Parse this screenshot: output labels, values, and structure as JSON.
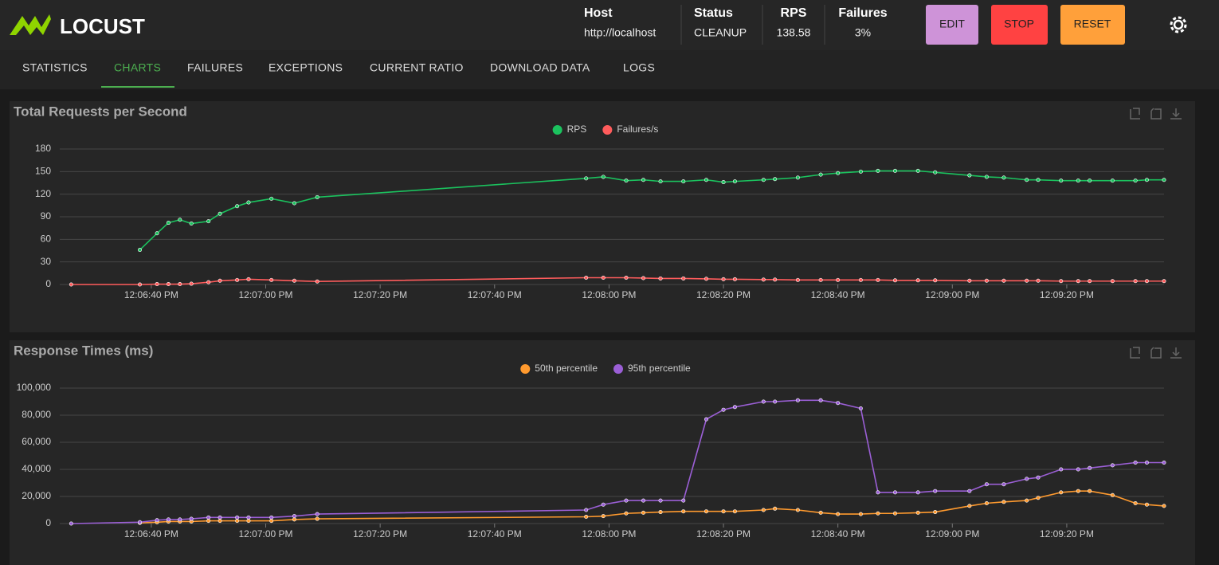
{
  "header": {
    "logo": "LOCUST",
    "stats": [
      {
        "label": "Host",
        "value": "http://localhost"
      },
      {
        "label": "Status",
        "value": "CLEANUP"
      },
      {
        "label": "RPS",
        "value": "138.58"
      },
      {
        "label": "Failures",
        "value": "3%"
      }
    ],
    "buttons": [
      "EDIT",
      "STOP",
      "RESET"
    ]
  },
  "tabs": [
    "STATISTICS",
    "CHARTS",
    "FAILURES",
    "EXCEPTIONS",
    "CURRENT RATIO",
    "DOWNLOAD DATA",
    "LOGS"
  ],
  "chart_data": [
    {
      "type": "line",
      "title": "Total Requests per Second",
      "legend": "top",
      "grid": true,
      "x": [
        "12:06:26 PM",
        "12:06:38 PM",
        "12:06:41 PM",
        "12:06:43 PM",
        "12:06:45 PM",
        "12:06:47 PM",
        "12:06:50 PM",
        "12:06:52 PM",
        "12:06:55 PM",
        "12:06:57 PM",
        "12:07:01 PM",
        "12:07:05 PM",
        "12:07:09 PM",
        "12:07:56 PM",
        "12:07:59 PM",
        "12:08:03 PM",
        "12:08:06 PM",
        "12:08:09 PM",
        "12:08:13 PM",
        "12:08:17 PM",
        "12:08:20 PM",
        "12:08:22 PM",
        "12:08:27 PM",
        "12:08:29 PM",
        "12:08:33 PM",
        "12:08:37 PM",
        "12:08:40 PM",
        "12:08:44 PM",
        "12:08:47 PM",
        "12:08:50 PM",
        "12:08:54 PM",
        "12:08:57 PM",
        "12:09:03 PM",
        "12:09:06 PM",
        "12:09:09 PM",
        "12:09:13 PM",
        "12:09:15 PM",
        "12:09:19 PM",
        "12:09:22 PM",
        "12:09:24 PM",
        "12:09:28 PM",
        "12:09:32 PM",
        "12:09:34 PM",
        "12:09:37 PM"
      ],
      "xlim": [
        "12:06:24 PM",
        "12:09:37 PM"
      ],
      "xticks": [
        "12:06:40 PM",
        "12:07:00 PM",
        "12:07:20 PM",
        "12:07:40 PM",
        "12:08:00 PM",
        "12:08:20 PM",
        "12:08:40 PM",
        "12:09:00 PM",
        "12:09:20 PM"
      ],
      "ylim": [
        0,
        180
      ],
      "yticks": [
        0,
        30,
        60,
        90,
        120,
        150,
        180
      ],
      "series": [
        {
          "name": "RPS",
          "color": "#1bc25e",
          "values": [
            null,
            46,
            68,
            82,
            86,
            81,
            84,
            94,
            104,
            109,
            114,
            108,
            116,
            141,
            143,
            138,
            139,
            137,
            137,
            139,
            136,
            137,
            139,
            140,
            142,
            146,
            148,
            150,
            151,
            151,
            151,
            149,
            145,
            143,
            142,
            139,
            139,
            138,
            138,
            138,
            138,
            138,
            139,
            139
          ]
        },
        {
          "name": "Failures/s",
          "color": "#ff5c5c",
          "values": [
            0,
            0,
            0.5,
            0.5,
            0.5,
            1,
            3,
            5,
            6,
            7,
            6,
            5,
            4,
            9,
            9,
            9,
            8.5,
            8,
            8,
            7.5,
            7,
            7,
            6.5,
            6.5,
            6,
            6,
            6,
            6,
            6,
            5.5,
            5.5,
            5.5,
            5,
            5,
            5,
            5,
            5,
            4.5,
            4.5,
            4.5,
            4.5,
            4.5,
            4.5,
            4.5
          ]
        }
      ]
    },
    {
      "type": "line",
      "title": "Response Times (ms)",
      "legend": "top",
      "grid": true,
      "x": [
        "12:06:26 PM",
        "12:06:38 PM",
        "12:06:41 PM",
        "12:06:43 PM",
        "12:06:45 PM",
        "12:06:47 PM",
        "12:06:50 PM",
        "12:06:52 PM",
        "12:06:55 PM",
        "12:06:57 PM",
        "12:07:01 PM",
        "12:07:05 PM",
        "12:07:09 PM",
        "12:07:56 PM",
        "12:07:59 PM",
        "12:08:03 PM",
        "12:08:06 PM",
        "12:08:09 PM",
        "12:08:13 PM",
        "12:08:17 PM",
        "12:08:20 PM",
        "12:08:22 PM",
        "12:08:27 PM",
        "12:08:29 PM",
        "12:08:33 PM",
        "12:08:37 PM",
        "12:08:40 PM",
        "12:08:44 PM",
        "12:08:47 PM",
        "12:08:50 PM",
        "12:08:54 PM",
        "12:08:57 PM",
        "12:09:03 PM",
        "12:09:06 PM",
        "12:09:09 PM",
        "12:09:13 PM",
        "12:09:15 PM",
        "12:09:19 PM",
        "12:09:22 PM",
        "12:09:24 PM",
        "12:09:28 PM",
        "12:09:32 PM",
        "12:09:34 PM",
        "12:09:37 PM"
      ],
      "xlim": [
        "12:06:24 PM",
        "12:09:37 PM"
      ],
      "xticks": [
        "12:06:40 PM",
        "12:07:00 PM",
        "12:07:20 PM",
        "12:07:40 PM",
        "12:08:00 PM",
        "12:08:20 PM",
        "12:08:40 PM",
        "12:09:00 PM",
        "12:09:20 PM"
      ],
      "ylim": [
        0,
        100000
      ],
      "yticks": [
        0,
        {
          "value": 20000,
          "label": "20,000"
        },
        {
          "value": 40000,
          "label": "40,000"
        },
        {
          "value": 60000,
          "label": "60,000"
        },
        {
          "value": 80000,
          "label": "80,000"
        },
        {
          "value": 100000,
          "label": "100,000"
        }
      ],
      "series": [
        {
          "name": "50th percentile",
          "color": "#ff9a2e",
          "values": [
            null,
            500,
            1000,
            1500,
            1500,
            1500,
            2000,
            2000,
            2000,
            2000,
            2000,
            3000,
            3500,
            5000,
            5500,
            7500,
            8000,
            8500,
            9000,
            9000,
            9000,
            9000,
            10000,
            11000,
            10000,
            8000,
            7000,
            7000,
            7500,
            7500,
            8000,
            8500,
            13000,
            15000,
            16000,
            17000,
            19000,
            23000,
            24000,
            24000,
            21000,
            15000,
            14000,
            13000
          ]
        },
        {
          "name": "95th percentile",
          "color": "#9b5fd6",
          "values": [
            0,
            1000,
            2500,
            3000,
            3000,
            3500,
            4500,
            4500,
            4500,
            4500,
            4500,
            5500,
            7000,
            10000,
            14000,
            17000,
            17000,
            17000,
            17000,
            77000,
            84000,
            86000,
            90000,
            90000,
            91000,
            91000,
            89000,
            85000,
            23000,
            23000,
            23000,
            24000,
            24000,
            29000,
            29000,
            33000,
            34000,
            40000,
            40000,
            41000,
            43000,
            45000,
            45000,
            45000
          ]
        }
      ]
    }
  ]
}
